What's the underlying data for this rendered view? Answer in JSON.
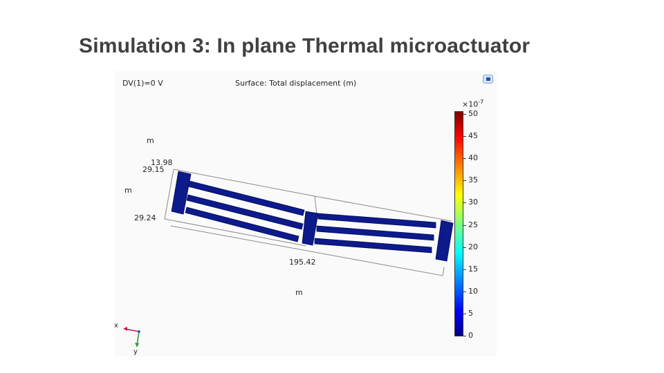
{
  "slide": {
    "title": "Simulation 3: In plane Thermal microactuator"
  },
  "plot": {
    "parameter_label": "DV(1)=0 V",
    "surface_label": "Surface: Total displacement (m)",
    "axis_labels": {
      "unit_top": "m",
      "unit_left": "m",
      "unit_bottom": "m",
      "dim_1": "13.98",
      "dim_2": "29.15",
      "dim_3": "29.24",
      "dim_4": "195.42"
    },
    "triad": {
      "x_label": "x",
      "y_label": "y"
    },
    "colorbar": {
      "exponent": "×10",
      "exponent_power": "-7",
      "ticks": [
        "50",
        "45",
        "40",
        "35",
        "30",
        "25",
        "20",
        "15",
        "10",
        "5",
        "0"
      ],
      "colors": [
        "#00008f",
        "#0000ff",
        "#00ffff",
        "#ffff00",
        "#ff0000",
        "#800000"
      ]
    },
    "structure_color": "#0c1a8c"
  }
}
